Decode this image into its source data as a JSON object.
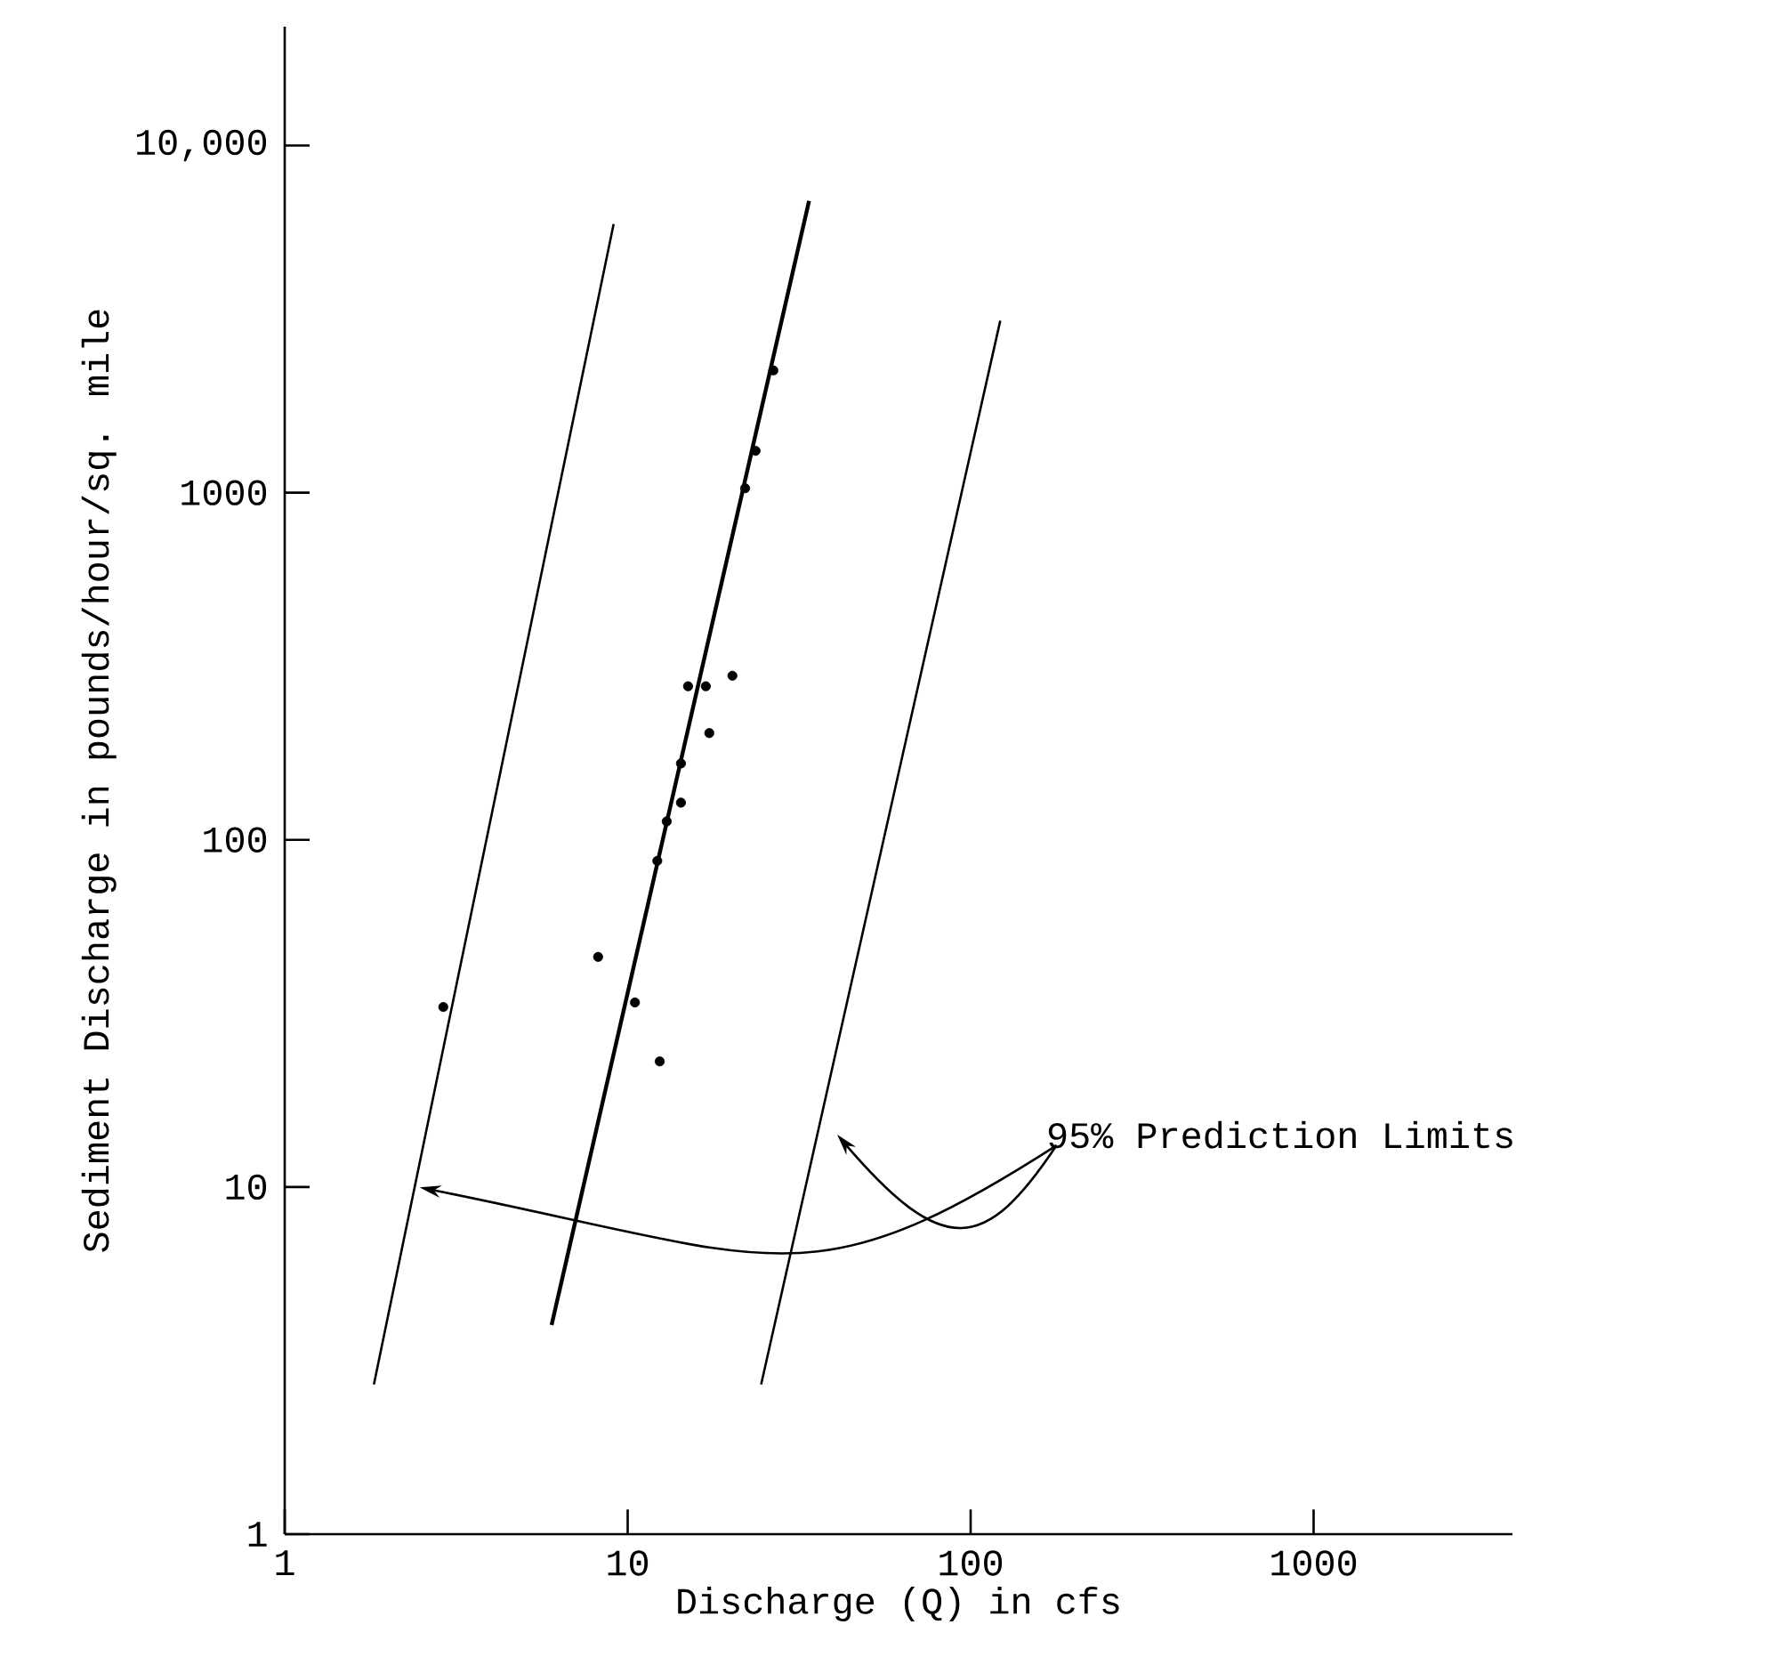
{
  "chart_data": {
    "type": "scatter",
    "xlabel": "Discharge (Q) in cfs",
    "ylabel": "Sediment Discharge in pounds/hour/sq. mile",
    "log": "xy",
    "xlim": [
      1,
      3800
    ],
    "ylim": [
      1,
      22000
    ],
    "xticks": [
      1,
      10,
      100,
      1000
    ],
    "yticks": [
      1,
      10,
      100,
      1000,
      {
        "value": 10000,
        "label": "10,000"
      }
    ],
    "annotations": [
      "95% Prediction Limits"
    ],
    "series": [
      {
        "marker": "circle",
        "color": "#000000",
        "x": [
          26.6,
          23.6,
          22.0,
          15.0,
          16.9,
          20.2,
          17.3,
          14.3,
          14.3,
          13.0,
          12.2,
          8.2,
          2.9,
          10.5,
          12.4
        ],
        "values": [
          2250,
          1320,
          1030,
          277,
          277,
          297,
          203,
          166,
          128,
          113,
          87,
          46,
          33,
          34,
          23
        ]
      },
      {
        "type": "line",
        "marker": "none",
        "color": "#000000",
        "x": [
          6.0,
          33.8
        ],
        "values": [
          4.0,
          6930
        ]
      },
      {
        "type": "line",
        "marker": "none",
        "color": "#000000",
        "x": [
          1.82,
          9.1
        ],
        "values": [
          2.7,
          5940
        ]
      },
      {
        "type": "line",
        "marker": "none",
        "color": "#000000",
        "x": [
          24.5,
          122
        ],
        "values": [
          2.7,
          3130
        ]
      }
    ]
  }
}
